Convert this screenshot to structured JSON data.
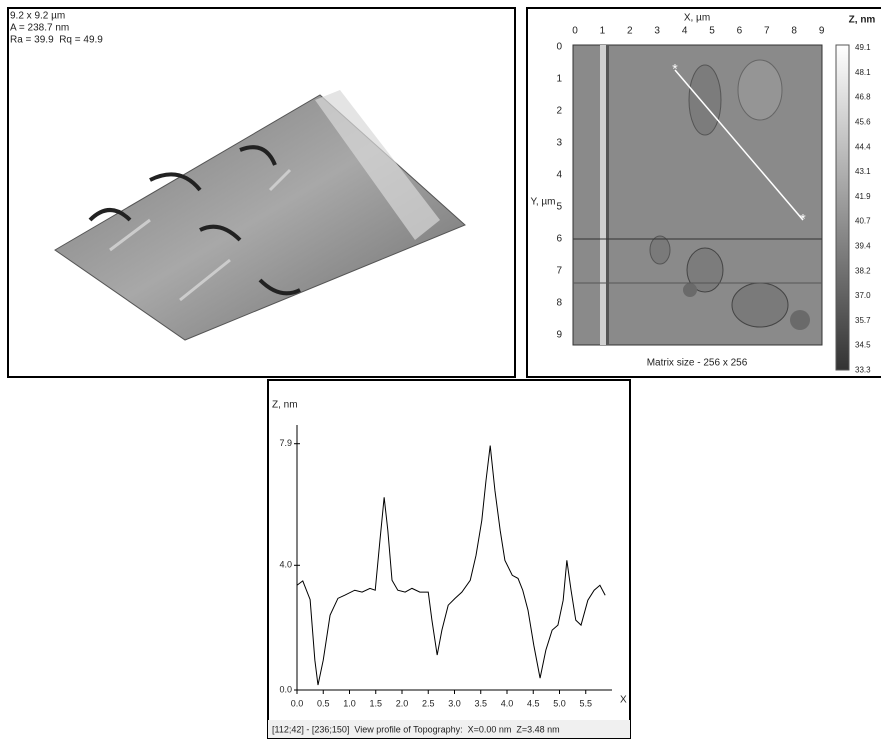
{
  "surface_panel": {
    "lines": [
      "9.2 x 9.2 µm",
      "A = 238.7 nm",
      "Ra = 39.9  Rq = 49.9"
    ]
  },
  "map_panel": {
    "x_label": "X, µm",
    "y_label": "Y, µm",
    "x_ticks": [
      "0",
      "1",
      "2",
      "3",
      "4",
      "5",
      "6",
      "7",
      "8",
      "9"
    ],
    "y_ticks": [
      "0",
      "1",
      "2",
      "3",
      "4",
      "5",
      "6",
      "7",
      "8",
      "9"
    ],
    "z_label": "Z, nm",
    "z_ticks": [
      "49.1",
      "48.1",
      "46.8",
      "45.6",
      "44.4",
      "43.1",
      "41.9",
      "40.7",
      "39.4",
      "38.2",
      "37.0",
      "35.7",
      "34.5",
      "33.3"
    ],
    "footer": "Matrix size - 256 x 256"
  },
  "chart_data": {
    "type": "line",
    "ylabel": "Z, nm",
    "xlabel": "X",
    "color": "#000000",
    "x": [
      0,
      0.11,
      0.25,
      0.34,
      0.4,
      0.5,
      0.63,
      0.78,
      0.91,
      1.1,
      1.24,
      1.39,
      1.49,
      1.58,
      1.66,
      1.73,
      1.81,
      1.92,
      2.06,
      2.19,
      2.34,
      2.5,
      2.57,
      2.67,
      2.76,
      2.88,
      3.01,
      3.14,
      3.3,
      3.41,
      3.52,
      3.6,
      3.68,
      3.77,
      3.87,
      3.96,
      4.1,
      4.21,
      4.3,
      4.4,
      4.51,
      4.63,
      4.74,
      4.86,
      4.97,
      5.07,
      5.14,
      5.22,
      5.31,
      5.41,
      5.54,
      5.66,
      5.77,
      5.87
    ],
    "values": [
      3.36,
      3.5,
      2.9,
      0.96,
      0.16,
      0.96,
      2.4,
      2.94,
      3.04,
      3.2,
      3.14,
      3.26,
      3.2,
      4.8,
      6.18,
      5.12,
      3.52,
      3.2,
      3.14,
      3.26,
      3.14,
      3.14,
      2.24,
      1.12,
      1.92,
      2.72,
      2.94,
      3.14,
      3.52,
      4.32,
      5.44,
      6.72,
      7.84,
      6.4,
      5.12,
      4.16,
      3.68,
      3.58,
      3.2,
      2.56,
      1.44,
      0.38,
      1.28,
      1.92,
      2.08,
      2.88,
      4.16,
      3.2,
      2.24,
      2.08,
      2.88,
      3.2,
      3.36,
      3.04
    ],
    "xlim": [
      0,
      6.0
    ],
    "ylim": [
      0,
      8.5
    ],
    "xticks": [
      {
        "value": 0,
        "label": "0.0"
      },
      0.5,
      {
        "value": 1,
        "label": "1.0"
      },
      1.5,
      {
        "value": 2,
        "label": "2.0"
      },
      2.5,
      {
        "value": 3,
        "label": "3.0"
      },
      3.5,
      {
        "value": 4,
        "label": "4.0"
      },
      4.5,
      {
        "value": 5,
        "label": "5.0"
      },
      5.5
    ],
    "yticks": [
      {
        "value": 0,
        "label": "0.0"
      },
      {
        "value": 4,
        "label": "4.0"
      },
      {
        "value": 7.9,
        "label": "7.9"
      }
    ]
  },
  "status_bar": "[112;42] - [236;150]  View profile of Topography:  X=0.00 nm  Z=3.48 nm"
}
